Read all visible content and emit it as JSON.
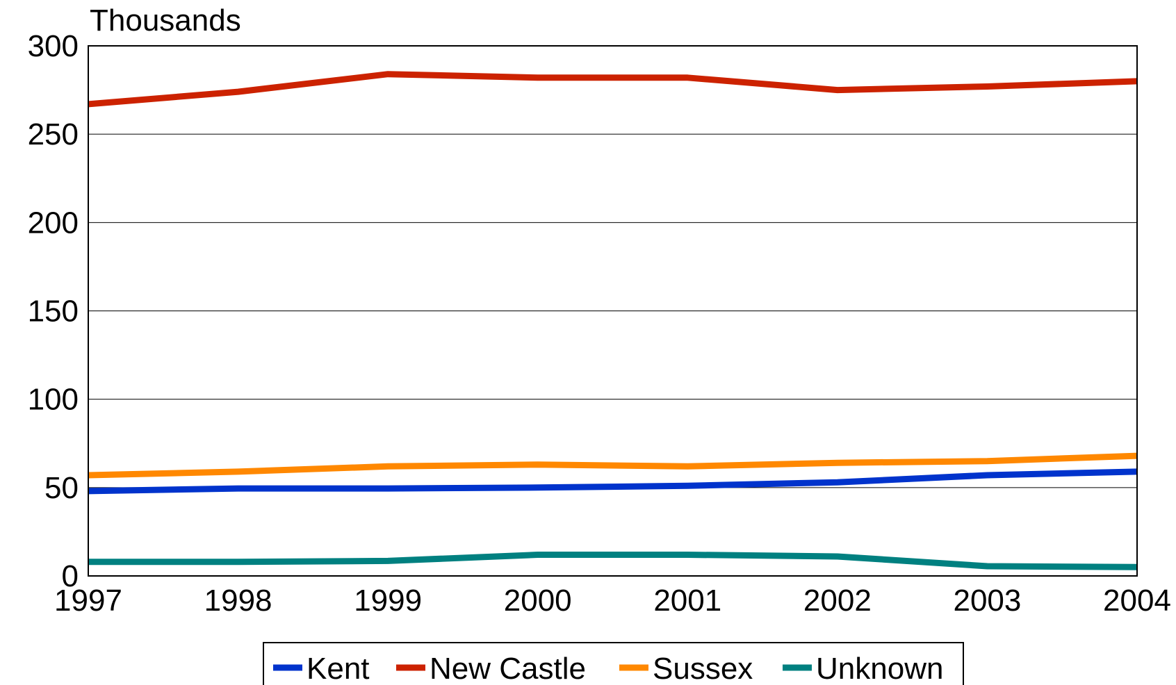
{
  "chart_data": {
    "type": "line",
    "y_unit_label": "Thousands",
    "x": [
      "1997",
      "1998",
      "1999",
      "2000",
      "2001",
      "2002",
      "2003",
      "2004"
    ],
    "ylim": [
      0,
      300
    ],
    "y_ticks": [
      "0",
      "50",
      "100",
      "150",
      "200",
      "250",
      "300"
    ],
    "grid": true,
    "legend_position": "bottom",
    "series": [
      {
        "name": "Kent",
        "color": "#0033cc",
        "values": [
          48,
          49.5,
          49.5,
          50,
          51,
          53,
          57,
          59
        ]
      },
      {
        "name": "New Castle",
        "color": "#cc2200",
        "values": [
          267,
          274,
          284,
          282,
          282,
          275,
          277,
          280
        ]
      },
      {
        "name": "Sussex",
        "color": "#ff8800",
        "values": [
          57,
          59,
          62,
          63,
          62,
          64,
          65,
          68
        ]
      },
      {
        "name": "Unknown",
        "color": "#008080",
        "values": [
          8,
          8,
          8.5,
          12,
          12,
          11,
          5.5,
          5
        ]
      }
    ]
  }
}
